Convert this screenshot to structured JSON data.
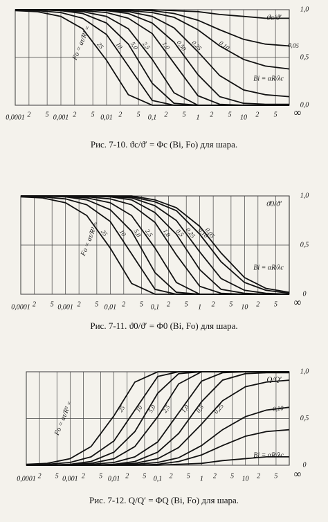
{
  "chart_data": [
    {
      "type": "line",
      "xscale": "log",
      "grid": true,
      "color": "#111111",
      "ylabel": "ϑc/ϑ′",
      "fo_label": "Fo = aτ/R² =",
      "bi_label": "Bi = αR/λc",
      "x_end_label": "∞",
      "caption": "Рис. 7-10. ϑc/ϑ′ = Φc (Bi, Fo) для шара.",
      "xlim": [
        0.0001,
        100
      ],
      "ylim": [
        0,
        1
      ],
      "xticks": [
        {
          "value": 0.0001,
          "label": "0,0001"
        },
        {
          "value": 0.0002,
          "label": "2"
        },
        {
          "value": 0.0005,
          "label": "5"
        },
        {
          "value": 0.001,
          "label": "0,001"
        },
        {
          "value": 0.002,
          "label": "2"
        },
        {
          "value": 0.005,
          "label": "5"
        },
        {
          "value": 0.01,
          "label": "0,01"
        },
        {
          "value": 0.02,
          "label": "2"
        },
        {
          "value": 0.05,
          "label": "5"
        },
        {
          "value": 0.1,
          "label": "0,1"
        },
        {
          "value": 0.2,
          "label": "2"
        },
        {
          "value": 0.5,
          "label": "5"
        },
        1,
        2,
        5,
        10,
        {
          "value": 20,
          "label": "2"
        },
        {
          "value": 50,
          "label": "5"
        }
      ],
      "yticks": [
        {
          "value": 0,
          "label": "0,0"
        },
        {
          "value": 0.5,
          "label": "0,5"
        },
        {
          "value": 1,
          "label": "1,0"
        }
      ],
      "x": [
        0.0001,
        0.0003,
        0.001,
        0.003,
        0.01,
        0.03,
        0.1,
        0.3,
        1,
        3,
        10,
        30,
        100
      ],
      "series": [
        {
          "name": "25",
          "values": [
            0.99,
            0.98,
            0.93,
            0.8,
            0.47,
            0.11,
            0,
            0,
            0,
            0,
            0,
            0,
            0
          ]
        },
        {
          "name": "10",
          "values": [
            1,
            0.99,
            0.97,
            0.91,
            0.74,
            0.41,
            0.05,
            0,
            0,
            0,
            0,
            0,
            0
          ]
        },
        {
          "name": "5,0",
          "values": [
            1,
            1,
            0.99,
            0.96,
            0.86,
            0.64,
            0.23,
            0.02,
            0,
            0,
            0,
            0,
            0
          ]
        },
        {
          "name": "2,5",
          "values": [
            1,
            1,
            0.99,
            0.98,
            0.93,
            0.8,
            0.48,
            0.13,
            0,
            0,
            0,
            0,
            0
          ]
        },
        {
          "name": "1,0",
          "values": [
            1,
            1,
            1,
            0.99,
            0.97,
            0.91,
            0.75,
            0.44,
            0.1,
            0.01,
            0,
            0,
            0
          ]
        },
        {
          "name": "0,50",
          "values": [
            1,
            1,
            1,
            1,
            0.99,
            0.96,
            0.86,
            0.66,
            0.32,
            0.09,
            0.02,
            0.01,
            0.01
          ]
        },
        {
          "name": "0,25",
          "values": [
            1,
            1,
            1,
            1,
            0.99,
            0.98,
            0.93,
            0.81,
            0.56,
            0.31,
            0.16,
            0.11,
            0.09
          ]
        },
        {
          "name": "0,10",
          "values": [
            1,
            1,
            1,
            1,
            1,
            0.99,
            0.97,
            0.92,
            0.79,
            0.62,
            0.48,
            0.41,
            0.38
          ]
        },
        {
          "name": "0,05",
          "values": [
            1,
            1,
            1,
            1,
            1,
            1,
            0.99,
            0.96,
            0.89,
            0.79,
            0.69,
            0.64,
            0.62
          ]
        },
        {
          "name": "0,01",
          "values": [
            1,
            1,
            1,
            1,
            1,
            1,
            1,
            0.99,
            0.98,
            0.95,
            0.93,
            0.91,
            0.91
          ]
        }
      ]
    },
    {
      "type": "line",
      "xscale": "log",
      "grid": true,
      "color": "#111111",
      "ylabel": "ϑ0/ϑ′",
      "fo_label": "Fo = aτ/R² =",
      "bi_label": "Bi = αR/λc",
      "x_end_label": "∞",
      "caption": "Рис. 7-11. ϑ0/ϑ′ = Φ0 (Bi, Fo) для шара.",
      "xlim": [
        0.0001,
        100
      ],
      "ylim": [
        0,
        1
      ],
      "xticks": [
        {
          "value": 0.0001,
          "label": "0,0001"
        },
        {
          "value": 0.0002,
          "label": "2"
        },
        {
          "value": 0.0005,
          "label": "5"
        },
        {
          "value": 0.001,
          "label": "0,001"
        },
        {
          "value": 0.002,
          "label": "2"
        },
        {
          "value": 0.005,
          "label": "5"
        },
        {
          "value": 0.01,
          "label": "0,01"
        },
        {
          "value": 0.02,
          "label": "2"
        },
        {
          "value": 0.05,
          "label": "5"
        },
        {
          "value": 0.1,
          "label": "0,1"
        },
        {
          "value": 0.2,
          "label": "2"
        },
        {
          "value": 0.5,
          "label": "5"
        },
        1,
        2,
        5,
        10,
        {
          "value": 20,
          "label": "2"
        },
        {
          "value": 50,
          "label": "5"
        }
      ],
      "yticks": [
        0,
        {
          "value": 0.5,
          "label": "0,5"
        },
        {
          "value": 1,
          "label": "1,0"
        }
      ],
      "x": [
        0.0001,
        0.0003,
        0.001,
        0.003,
        0.01,
        0.03,
        0.1,
        0.3,
        1,
        3,
        10,
        30,
        100
      ],
      "series": [
        {
          "name": "25",
          "values": [
            0.99,
            0.98,
            0.93,
            0.8,
            0.47,
            0.11,
            0,
            0,
            0,
            0,
            0,
            0,
            0
          ]
        },
        {
          "name": "10",
          "values": [
            1,
            0.99,
            0.97,
            0.91,
            0.74,
            0.41,
            0.05,
            0,
            0,
            0,
            0,
            0,
            0
          ]
        },
        {
          "name": "5,0",
          "values": [
            1,
            1,
            0.99,
            0.96,
            0.86,
            0.64,
            0.22,
            0.02,
            0,
            0,
            0,
            0,
            0
          ]
        },
        {
          "name": "2,5",
          "values": [
            1,
            1,
            0.99,
            0.98,
            0.93,
            0.8,
            0.47,
            0.12,
            0,
            0,
            0,
            0,
            0
          ]
        },
        {
          "name": "1,0",
          "values": [
            1,
            1,
            1,
            0.99,
            0.97,
            0.91,
            0.73,
            0.4,
            0.08,
            0.01,
            0,
            0,
            0
          ]
        },
        {
          "name": "0,5",
          "values": [
            1,
            1,
            1,
            1,
            0.99,
            0.96,
            0.83,
            0.61,
            0.25,
            0.05,
            0.01,
            0,
            0
          ]
        },
        {
          "name": "0,25",
          "values": [
            1,
            1,
            1,
            1,
            0.99,
            0.98,
            0.9,
            0.75,
            0.43,
            0.16,
            0.04,
            0.01,
            0
          ]
        },
        {
          "name": "0,10",
          "values": [
            1,
            1,
            1,
            1,
            1,
            0.99,
            0.94,
            0.85,
            0.61,
            0.33,
            0.12,
            0.04,
            0.01
          ]
        },
        {
          "name": "0,05",
          "values": [
            1,
            1,
            1,
            1,
            1,
            1,
            0.96,
            0.88,
            0.69,
            0.42,
            0.17,
            0.06,
            0.02
          ]
        }
      ]
    },
    {
      "type": "line",
      "xscale": "log",
      "grid": true,
      "color": "#111111",
      "ylabel": "Q/Q′",
      "fo_label": "Fo = aτ/R² =",
      "bi_label": "Bi = αR/λc",
      "x_end_label": "∞",
      "caption": "Рис. 7-12. Q/Q′ = ΦQ (Bi, Fo) для шара.",
      "xlim": [
        0.0001,
        100
      ],
      "ylim": [
        0,
        1
      ],
      "xticks": [
        {
          "value": 0.0001,
          "label": "0,0001"
        },
        {
          "value": 0.0002,
          "label": "2"
        },
        {
          "value": 0.0005,
          "label": "5"
        },
        {
          "value": 0.001,
          "label": "0,001"
        },
        {
          "value": 0.002,
          "label": "2"
        },
        {
          "value": 0.005,
          "label": "5"
        },
        {
          "value": 0.01,
          "label": "0,01"
        },
        {
          "value": 0.02,
          "label": "2"
        },
        {
          "value": 0.05,
          "label": "5"
        },
        {
          "value": 0.1,
          "label": "0,1"
        },
        {
          "value": 0.2,
          "label": "2"
        },
        {
          "value": 0.5,
          "label": "5"
        },
        1,
        2,
        5,
        10,
        {
          "value": 20,
          "label": "2"
        },
        {
          "value": 50,
          "label": "5"
        }
      ],
      "yticks": [
        0,
        {
          "value": 0.5,
          "label": "0,5"
        },
        {
          "value": 1,
          "label": "1,0"
        }
      ],
      "x": [
        0.0001,
        0.0003,
        0.001,
        0.003,
        0.01,
        0.03,
        0.1,
        0.3,
        1,
        3,
        10,
        30,
        100
      ],
      "series": [
        {
          "name": "25",
          "values": [
            0.01,
            0.02,
            0.07,
            0.2,
            0.53,
            0.89,
            1,
            1,
            1,
            1,
            1,
            1,
            1
          ]
        },
        {
          "name": "10",
          "values": [
            0,
            0.01,
            0.03,
            0.09,
            0.26,
            0.59,
            0.95,
            1,
            1,
            1,
            1,
            1,
            1
          ]
        },
        {
          "name": "5,0",
          "values": [
            0,
            0,
            0.01,
            0.04,
            0.14,
            0.36,
            0.77,
            0.98,
            1,
            1,
            1,
            1,
            1
          ]
        },
        {
          "name": "2,5",
          "values": [
            0,
            0,
            0.01,
            0.02,
            0.07,
            0.2,
            0.52,
            0.87,
            1,
            1,
            1,
            1,
            1
          ]
        },
        {
          "name": "1,0",
          "values": [
            0,
            0,
            0,
            0.01,
            0.03,
            0.09,
            0.25,
            0.56,
            0.9,
            0.99,
            1,
            1,
            1
          ]
        },
        {
          "name": "0,5",
          "values": [
            0,
            0,
            0,
            0,
            0.01,
            0.04,
            0.14,
            0.34,
            0.68,
            0.91,
            0.98,
            0.99,
            0.99
          ]
        },
        {
          "name": "0,25",
          "values": [
            0,
            0,
            0,
            0,
            0.01,
            0.02,
            0.07,
            0.19,
            0.44,
            0.69,
            0.84,
            0.89,
            0.91
          ]
        },
        {
          "name": "0,10",
          "values": [
            0,
            0,
            0,
            0,
            0,
            0.01,
            0.03,
            0.08,
            0.21,
            0.38,
            0.52,
            0.59,
            0.62
          ]
        },
        {
          "name": "0,05",
          "values": [
            0,
            0,
            0,
            0,
            0,
            0,
            0.01,
            0.04,
            0.11,
            0.21,
            0.31,
            0.36,
            0.38
          ]
        },
        {
          "name": "0,01",
          "values": [
            0,
            0,
            0,
            0,
            0,
            0,
            0,
            0.01,
            0.02,
            0.05,
            0.07,
            0.09,
            0.09
          ]
        }
      ]
    }
  ]
}
